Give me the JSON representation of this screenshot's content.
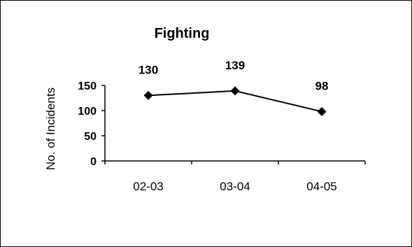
{
  "chart_data": {
    "type": "line",
    "title": "Fighting",
    "xlabel": "",
    "ylabel": "No. of Incidents",
    "categories": [
      "02-03",
      "03-04",
      "04-05"
    ],
    "series": [
      {
        "values": [
          130,
          139,
          98
        ],
        "data_labels": [
          "130",
          "139",
          "98"
        ],
        "color": "#000000",
        "marker": "diamond"
      }
    ],
    "ylim": [
      0,
      150
    ],
    "yticks": [
      "0",
      "50",
      "100",
      "150"
    ],
    "grid": false,
    "legend": "none"
  }
}
